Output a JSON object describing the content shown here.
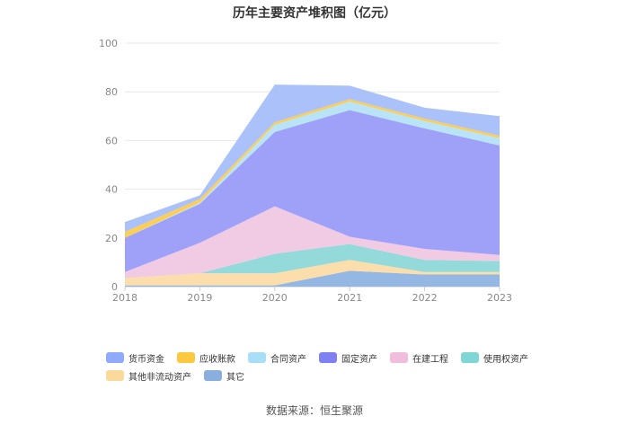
{
  "chart_data": {
    "type": "area",
    "title": "历年主要资产堆积图（亿元）",
    "x": [
      "2018",
      "2019",
      "2020",
      "2021",
      "2022",
      "2023"
    ],
    "ylim": [
      0,
      100
    ],
    "yticks": [
      0,
      20,
      40,
      60,
      80,
      100
    ],
    "grid": true,
    "legend_position": "bottom",
    "stacked": true,
    "series": [
      {
        "name": "其它",
        "color": "#8eb3e3",
        "values": [
          0.5,
          0.5,
          0.5,
          6.5,
          5.0,
          5.0
        ]
      },
      {
        "name": "其他非流动资产",
        "color": "#fbdca6",
        "values": [
          3.0,
          5.0,
          5.0,
          4.5,
          1.0,
          1.0
        ]
      },
      {
        "name": "使用权资产",
        "color": "#8ed8d8",
        "values": [
          0.0,
          0.0,
          8.0,
          6.5,
          5.0,
          4.5
        ]
      },
      {
        "name": "在建工程",
        "color": "#f0c8e3",
        "values": [
          2.5,
          12.5,
          19.5,
          3.0,
          4.5,
          2.5
        ]
      },
      {
        "name": "固定资产",
        "color": "#9a9cf8",
        "values": [
          14.0,
          16.0,
          30.5,
          52.0,
          49.5,
          45.0
        ]
      },
      {
        "name": "合同资产",
        "color": "#b5e2f7",
        "values": [
          0.0,
          0.5,
          3.0,
          3.5,
          3.0,
          3.0
        ]
      },
      {
        "name": "应收账款",
        "color": "#fccb4e",
        "values": [
          2.5,
          1.5,
          1.0,
          1.0,
          1.0,
          1.0
        ]
      },
      {
        "name": "货币资金",
        "color": "#a5bef9",
        "values": [
          4.0,
          1.5,
          15.5,
          5.5,
          4.5,
          8.0
        ]
      }
    ]
  },
  "legend": {
    "row1": [
      {
        "label": "货币资金",
        "color": "#8faaf9"
      },
      {
        "label": "应收账款",
        "color": "#fcc83f"
      },
      {
        "label": "合同资产",
        "color": "#a9def7"
      },
      {
        "label": "固定资产",
        "color": "#7f81f2"
      },
      {
        "label": "在建工程",
        "color": "#f0bddd"
      },
      {
        "label": "使用权资产",
        "color": "#7fd6d4"
      }
    ],
    "row2": [
      {
        "label": "其他非流动资产",
        "color": "#fbd99a"
      },
      {
        "label": "其它",
        "color": "#8aaedd"
      }
    ]
  },
  "source": "数据来源：恒生聚源"
}
